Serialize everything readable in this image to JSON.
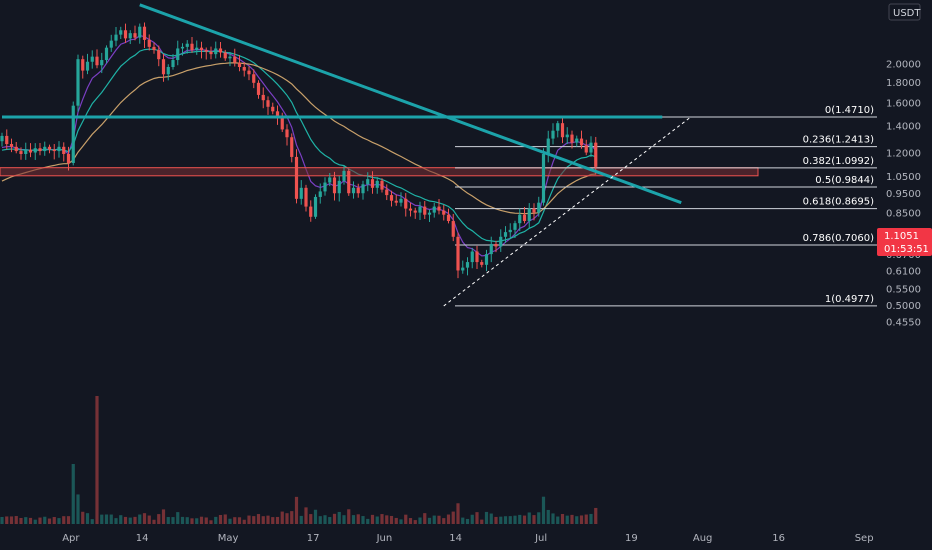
{
  "chart_data": {
    "type": "candlestick",
    "quote_currency": "USDT",
    "y_scale": "log",
    "grid": false,
    "x_tick_labels": [
      "Apr",
      "14",
      "May",
      "17",
      "Jun",
      "14",
      "Jul",
      "19",
      "Aug",
      "16",
      "Sep"
    ],
    "y_tick_labels": [
      "2.0000",
      "1.8000",
      "1.6000",
      "1.4000",
      "1.2000",
      "1.0500",
      "0.9500",
      "0.8500",
      "0.7500",
      "0.6700",
      "0.6100",
      "0.5500",
      "0.5000",
      "0.4550"
    ],
    "y_tick_values": [
      2.0,
      1.8,
      1.6,
      1.4,
      1.2,
      1.05,
      0.95,
      0.85,
      0.75,
      0.67,
      0.61,
      0.55,
      0.5,
      0.455
    ],
    "fibonacci": [
      {
        "level": "0",
        "price": 1.471,
        "label": "0(1.4710)"
      },
      {
        "level": "0.236",
        "price": 1.2413,
        "label": "0.236(1.2413)"
      },
      {
        "level": "0.382",
        "price": 1.0992,
        "label": "0.382(1.0992)"
      },
      {
        "level": "0.5",
        "price": 0.9844,
        "label": "0.5(0.9844)"
      },
      {
        "level": "0.618",
        "price": 0.8695,
        "label": "0.618(0.8695)"
      },
      {
        "level": "0.786",
        "price": 0.706,
        "label": "0.786(0.7060)"
      },
      {
        "level": "1",
        "price": 0.4977,
        "label": "1(0.4977)"
      }
    ],
    "last_price": {
      "value": "1.1051",
      "countdown": "01:53:51"
    },
    "closes": [
      1.32,
      1.26,
      1.24,
      1.21,
      1.19,
      1.22,
      1.2,
      1.23,
      1.21,
      1.24,
      1.22,
      1.21,
      1.24,
      1.19,
      1.13,
      1.57,
      2.05,
      1.92,
      2.02,
      2.08,
      1.98,
      2.04,
      2.19,
      2.28,
      2.36,
      2.42,
      2.31,
      2.38,
      2.32,
      2.47,
      2.29,
      2.2,
      2.16,
      2.05,
      1.88,
      1.96,
      2.04,
      2.18,
      2.2,
      2.24,
      2.16,
      2.19,
      2.16,
      2.14,
      2.11,
      2.18,
      2.13,
      2.06,
      2.08,
      2.01,
      1.96,
      1.92,
      1.88,
      1.79,
      1.67,
      1.62,
      1.56,
      1.52,
      1.46,
      1.37,
      1.31,
      1.17,
      0.92,
      0.98,
      0.88,
      0.83,
      0.93,
      0.96,
      1.01,
      1.04,
      0.95,
      1.02,
      1.08,
      0.95,
      0.98,
      0.95,
      1.0,
      1.03,
      0.98,
      1.02,
      0.97,
      0.94,
      0.91,
      0.9,
      0.92,
      0.87,
      0.86,
      0.85,
      0.88,
      0.84,
      0.85,
      0.88,
      0.86,
      0.84,
      0.81,
      0.74,
      0.61,
      0.62,
      0.64,
      0.68,
      0.64,
      0.63,
      0.67,
      0.71,
      0.7,
      0.74,
      0.76,
      0.77,
      0.8,
      0.84,
      0.81,
      0.87,
      0.85,
      0.9,
      1.19,
      1.3,
      1.36,
      1.42,
      1.31,
      1.33,
      1.27,
      1.3,
      1.25,
      1.2,
      1.27,
      1.1051
    ],
    "trendlines": [
      {
        "name": "descending-trendline",
        "from": {
          "index": 29,
          "price": 2.8
        },
        "to": {
          "index": 143,
          "price": 0.9
        }
      },
      {
        "name": "horizontal-resistance",
        "from": {
          "index": 0,
          "price": 1.471
        },
        "to": {
          "index": 139,
          "price": 1.471
        }
      },
      {
        "name": "ascending-support",
        "from": {
          "index": 93,
          "price": 0.4977
        },
        "to": {
          "index": 145,
          "price": 1.471
        }
      }
    ],
    "support_zone": {
      "low": 1.05,
      "high": 1.1
    }
  },
  "colors": {
    "background": "#131722",
    "up": "#26a69a",
    "down": "#ef5350",
    "trendline": "#1ca3aa",
    "ema_fast": "#7b3fc4",
    "ema_mid": "#1fb2a6",
    "ema_slow": "#c8a06a",
    "zone_fill": "#7a2e33",
    "zone_border": "#ef5350",
    "fib_line": "#d1d4dc",
    "badge": "#f23645"
  }
}
